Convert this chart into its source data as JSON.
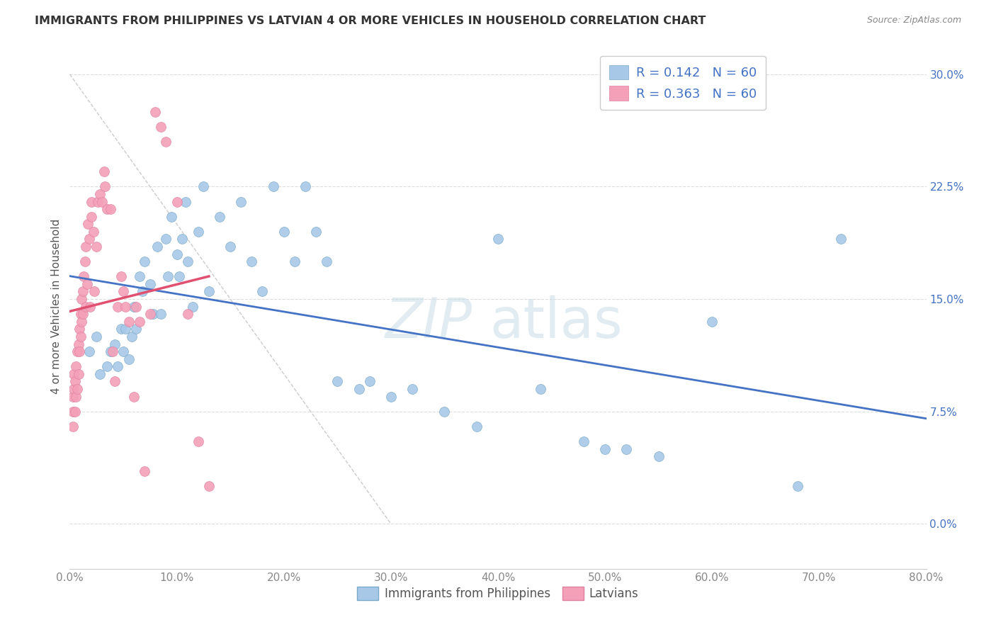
{
  "title": "IMMIGRANTS FROM PHILIPPINES VS LATVIAN 4 OR MORE VEHICLES IN HOUSEHOLD CORRELATION CHART",
  "source": "Source: ZipAtlas.com",
  "ylabel_label": "4 or more Vehicles in Household",
  "xlim": [
    0.0,
    0.8
  ],
  "ylim": [
    -0.03,
    0.32
  ],
  "R_blue": 0.142,
  "N_blue": 60,
  "R_pink": 0.363,
  "N_pink": 60,
  "legend_labels": [
    "Immigrants from Philippines",
    "Latvians"
  ],
  "color_blue_fill": "#a8c8e8",
  "color_blue_edge": "#7aaac8",
  "color_pink_fill": "#f4a0b8",
  "color_pink_edge": "#e080a0",
  "color_blue_line": "#4472c4",
  "color_pink_line": "#e05070",
  "color_diag_line": "#cccccc",
  "watermark_color": "#c8dce8",
  "yticks": [
    0.0,
    0.075,
    0.15,
    0.225,
    0.3
  ],
  "xticks": [
    0.0,
    0.1,
    0.2,
    0.3,
    0.4,
    0.5,
    0.6,
    0.7,
    0.8
  ],
  "blue_x": [
    0.018,
    0.025,
    0.028,
    0.035,
    0.038,
    0.042,
    0.045,
    0.048,
    0.05,
    0.052,
    0.055,
    0.058,
    0.06,
    0.062,
    0.065,
    0.068,
    0.07,
    0.075,
    0.078,
    0.082,
    0.085,
    0.09,
    0.092,
    0.095,
    0.1,
    0.102,
    0.105,
    0.108,
    0.11,
    0.115,
    0.12,
    0.125,
    0.13,
    0.14,
    0.15,
    0.16,
    0.17,
    0.18,
    0.19,
    0.2,
    0.21,
    0.22,
    0.23,
    0.24,
    0.25,
    0.27,
    0.28,
    0.3,
    0.32,
    0.35,
    0.38,
    0.4,
    0.44,
    0.48,
    0.5,
    0.52,
    0.55,
    0.6,
    0.68,
    0.72
  ],
  "blue_y": [
    0.115,
    0.125,
    0.1,
    0.105,
    0.115,
    0.12,
    0.105,
    0.13,
    0.115,
    0.13,
    0.11,
    0.125,
    0.145,
    0.13,
    0.165,
    0.155,
    0.175,
    0.16,
    0.14,
    0.185,
    0.14,
    0.19,
    0.165,
    0.205,
    0.18,
    0.165,
    0.19,
    0.215,
    0.175,
    0.145,
    0.195,
    0.225,
    0.155,
    0.205,
    0.185,
    0.215,
    0.175,
    0.155,
    0.225,
    0.195,
    0.175,
    0.225,
    0.195,
    0.175,
    0.095,
    0.09,
    0.095,
    0.085,
    0.09,
    0.075,
    0.065,
    0.19,
    0.09,
    0.055,
    0.05,
    0.05,
    0.045,
    0.135,
    0.025,
    0.19
  ],
  "pink_x": [
    0.003,
    0.003,
    0.003,
    0.004,
    0.004,
    0.005,
    0.005,
    0.006,
    0.006,
    0.007,
    0.007,
    0.008,
    0.008,
    0.009,
    0.009,
    0.01,
    0.01,
    0.011,
    0.011,
    0.012,
    0.012,
    0.013,
    0.014,
    0.015,
    0.015,
    0.016,
    0.017,
    0.018,
    0.019,
    0.02,
    0.02,
    0.022,
    0.023,
    0.025,
    0.026,
    0.028,
    0.03,
    0.032,
    0.033,
    0.035,
    0.038,
    0.04,
    0.042,
    0.045,
    0.048,
    0.05,
    0.052,
    0.055,
    0.06,
    0.062,
    0.065,
    0.07,
    0.075,
    0.08,
    0.085,
    0.09,
    0.1,
    0.11,
    0.12,
    0.13
  ],
  "pink_y": [
    0.085,
    0.075,
    0.065,
    0.1,
    0.09,
    0.095,
    0.075,
    0.105,
    0.085,
    0.115,
    0.09,
    0.12,
    0.1,
    0.13,
    0.115,
    0.14,
    0.125,
    0.15,
    0.135,
    0.155,
    0.14,
    0.165,
    0.175,
    0.145,
    0.185,
    0.16,
    0.2,
    0.19,
    0.145,
    0.215,
    0.205,
    0.195,
    0.155,
    0.185,
    0.215,
    0.22,
    0.215,
    0.235,
    0.225,
    0.21,
    0.21,
    0.115,
    0.095,
    0.145,
    0.165,
    0.155,
    0.145,
    0.135,
    0.085,
    0.145,
    0.135,
    0.035,
    0.14,
    0.275,
    0.265,
    0.255,
    0.215,
    0.14,
    0.055,
    0.025
  ]
}
